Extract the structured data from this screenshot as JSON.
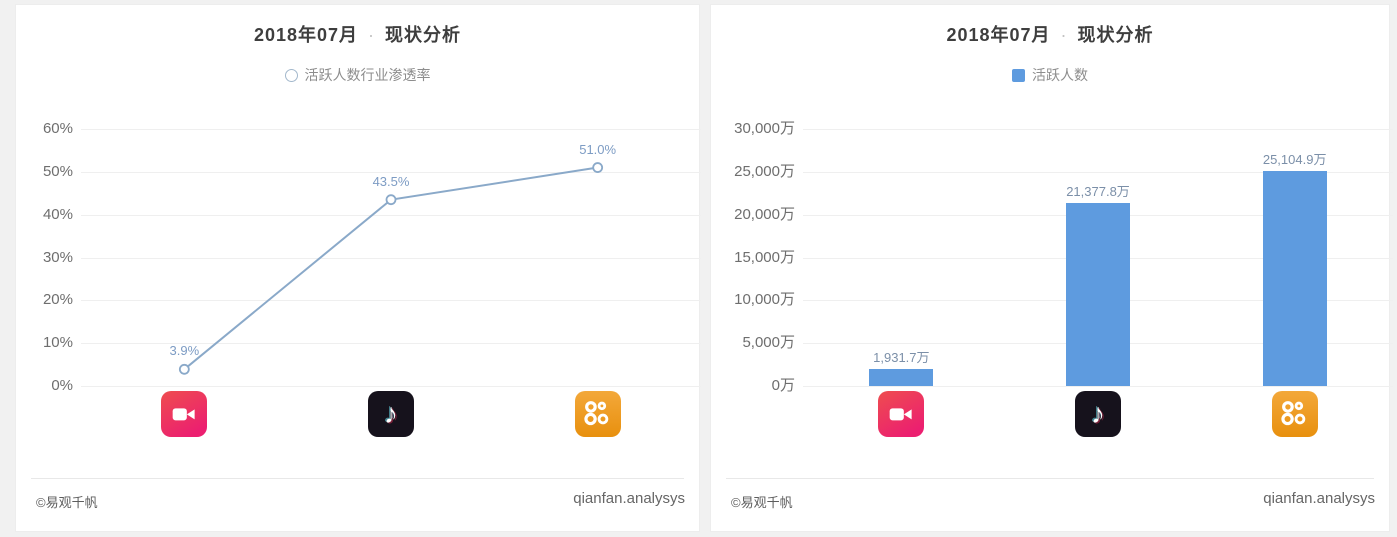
{
  "icons": [
    {
      "name": "meipai-icon",
      "color": "#EC1F70"
    },
    {
      "name": "douyin-icon",
      "color": "#16121C"
    },
    {
      "name": "kuaishou-icon",
      "color": "#EE9A1D"
    }
  ],
  "chart_data": [
    {
      "type": "line",
      "title_period": "2018年07月",
      "title_separator": "·",
      "title_name": "现状分析",
      "legend": "活跃人数行业渗透率",
      "legend_marker": "circle-outline",
      "legend_position": "top",
      "categories": [
        "meipai",
        "douyin",
        "kuaishou"
      ],
      "category_icons": [
        "meipai-icon",
        "douyin-icon",
        "kuaishou-icon"
      ],
      "values": [
        3.9,
        43.5,
        51.0
      ],
      "value_labels": [
        "3.9%",
        "43.5%",
        "51.0%"
      ],
      "ylim": [
        0,
        60
      ],
      "y_ticks": [
        "60%",
        "50%",
        "40%",
        "30%",
        "20%",
        "10%",
        "0%"
      ],
      "grid": true,
      "colors": {
        "line": "#8aa9c9",
        "marker_fill": "#ffffff",
        "value_label": "#7d9cc4"
      },
      "footer_left": "©易观千帆",
      "footer_right": "qianfan.analysys"
    },
    {
      "type": "bar",
      "title_period": "2018年07月",
      "title_separator": "·",
      "title_name": "现状分析",
      "legend": "活跃人数",
      "legend_marker": "filled-square",
      "legend_position": "top",
      "categories": [
        "meipai",
        "douyin",
        "kuaishou"
      ],
      "category_icons": [
        "meipai-icon",
        "douyin-icon",
        "kuaishou-icon"
      ],
      "values": [
        1931.7,
        21377.8,
        25104.9
      ],
      "value_labels": [
        "1,931.7万",
        "21,377.8万",
        "25,104.9万"
      ],
      "ylim": [
        0,
        30000
      ],
      "y_ticks": [
        "30,000万",
        "25,000万",
        "20,000万",
        "15,000万",
        "10,000万",
        "5,000万",
        "0万"
      ],
      "grid": true,
      "colors": {
        "bar": "#5e9bdf",
        "value_label": "#7b8fa8"
      },
      "footer_left": "©易观千帆",
      "footer_right": "qianfan.analysys"
    }
  ]
}
